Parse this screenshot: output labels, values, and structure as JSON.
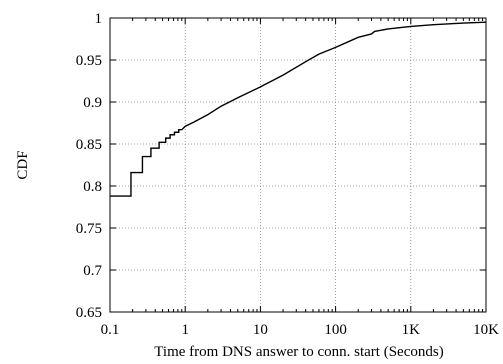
{
  "chart_data": {
    "type": "line",
    "xlabel": "Time from DNS answer to conn. start (Seconds)",
    "ylabel": "CDF",
    "x_scale": "log",
    "xlim": [
      0.1,
      10000
    ],
    "ylim": [
      0.65,
      1.0
    ],
    "grid": true,
    "x_ticks": [
      {
        "value": 0.1,
        "label": "0.1"
      },
      {
        "value": 1,
        "label": "1"
      },
      {
        "value": 10,
        "label": "10"
      },
      {
        "value": 100,
        "label": "100"
      },
      {
        "value": 1000,
        "label": "1K"
      },
      {
        "value": 10000,
        "label": "10K"
      }
    ],
    "y_ticks": [
      {
        "value": 0.65,
        "label": "0.65"
      },
      {
        "value": 0.7,
        "label": "0.7"
      },
      {
        "value": 0.75,
        "label": "0.75"
      },
      {
        "value": 0.8,
        "label": "0.8"
      },
      {
        "value": 0.85,
        "label": "0.85"
      },
      {
        "value": 0.9,
        "label": "0.9"
      },
      {
        "value": 0.95,
        "label": "0.95"
      },
      {
        "value": 1,
        "label": "1"
      }
    ],
    "series": [
      {
        "color": "#000000",
        "points": [
          [
            0.1,
            0.788
          ],
          [
            0.19,
            0.788
          ],
          [
            0.19,
            0.816
          ],
          [
            0.27,
            0.816
          ],
          [
            0.27,
            0.835
          ],
          [
            0.35,
            0.835
          ],
          [
            0.35,
            0.845
          ],
          [
            0.45,
            0.845
          ],
          [
            0.45,
            0.852
          ],
          [
            0.55,
            0.852
          ],
          [
            0.55,
            0.857
          ],
          [
            0.63,
            0.857
          ],
          [
            0.63,
            0.861
          ],
          [
            0.72,
            0.861
          ],
          [
            0.72,
            0.864
          ],
          [
            0.82,
            0.864
          ],
          [
            0.82,
            0.867
          ],
          [
            0.9,
            0.867
          ],
          [
            1.0,
            0.871
          ],
          [
            1.3,
            0.876
          ],
          [
            2,
            0.885
          ],
          [
            3,
            0.895
          ],
          [
            5,
            0.905
          ],
          [
            10,
            0.918
          ],
          [
            20,
            0.932
          ],
          [
            40,
            0.948
          ],
          [
            60,
            0.957
          ],
          [
            100,
            0.965
          ],
          [
            200,
            0.977
          ],
          [
            300,
            0.981
          ],
          [
            330,
            0.984
          ],
          [
            500,
            0.987
          ],
          [
            1000,
            0.99
          ],
          [
            2000,
            0.992
          ],
          [
            5000,
            0.994
          ],
          [
            10000,
            0.995
          ]
        ]
      }
    ]
  }
}
